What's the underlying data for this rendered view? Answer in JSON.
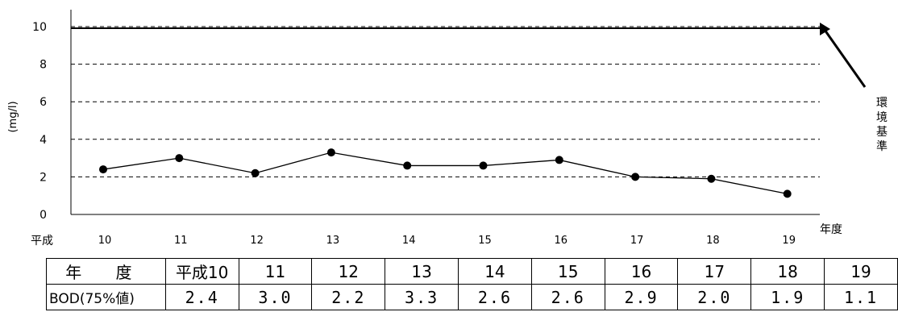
{
  "chart_data": {
    "type": "line",
    "categories": [
      "10",
      "11",
      "12",
      "13",
      "14",
      "15",
      "16",
      "17",
      "18",
      "19"
    ],
    "series": [
      {
        "values": [
          2.4,
          3.0,
          2.2,
          3.3,
          2.6,
          2.6,
          2.9,
          2.0,
          1.9,
          1.1
        ]
      }
    ],
    "y_ticks": [
      "0",
      "2",
      "4",
      "6",
      "8",
      "10"
    ],
    "ylim": [
      0,
      10
    ],
    "ylabel": "(mg/l)",
    "x_prefix": "平成",
    "xlabel": "年度",
    "reference_line": {
      "value": 10,
      "label": "環境基準"
    },
    "grid": "dashed horizontal"
  },
  "table": {
    "header_label": "年 度",
    "row_label": "BOD(75%値)",
    "years": [
      "平成10",
      "11",
      "12",
      "13",
      "14",
      "15",
      "16",
      "17",
      "18",
      "19"
    ],
    "values": [
      "2.4",
      "3.0",
      "2.2",
      "3.3",
      "2.6",
      "2.6",
      "2.9",
      "2.0",
      "1.9",
      "1.1"
    ]
  }
}
